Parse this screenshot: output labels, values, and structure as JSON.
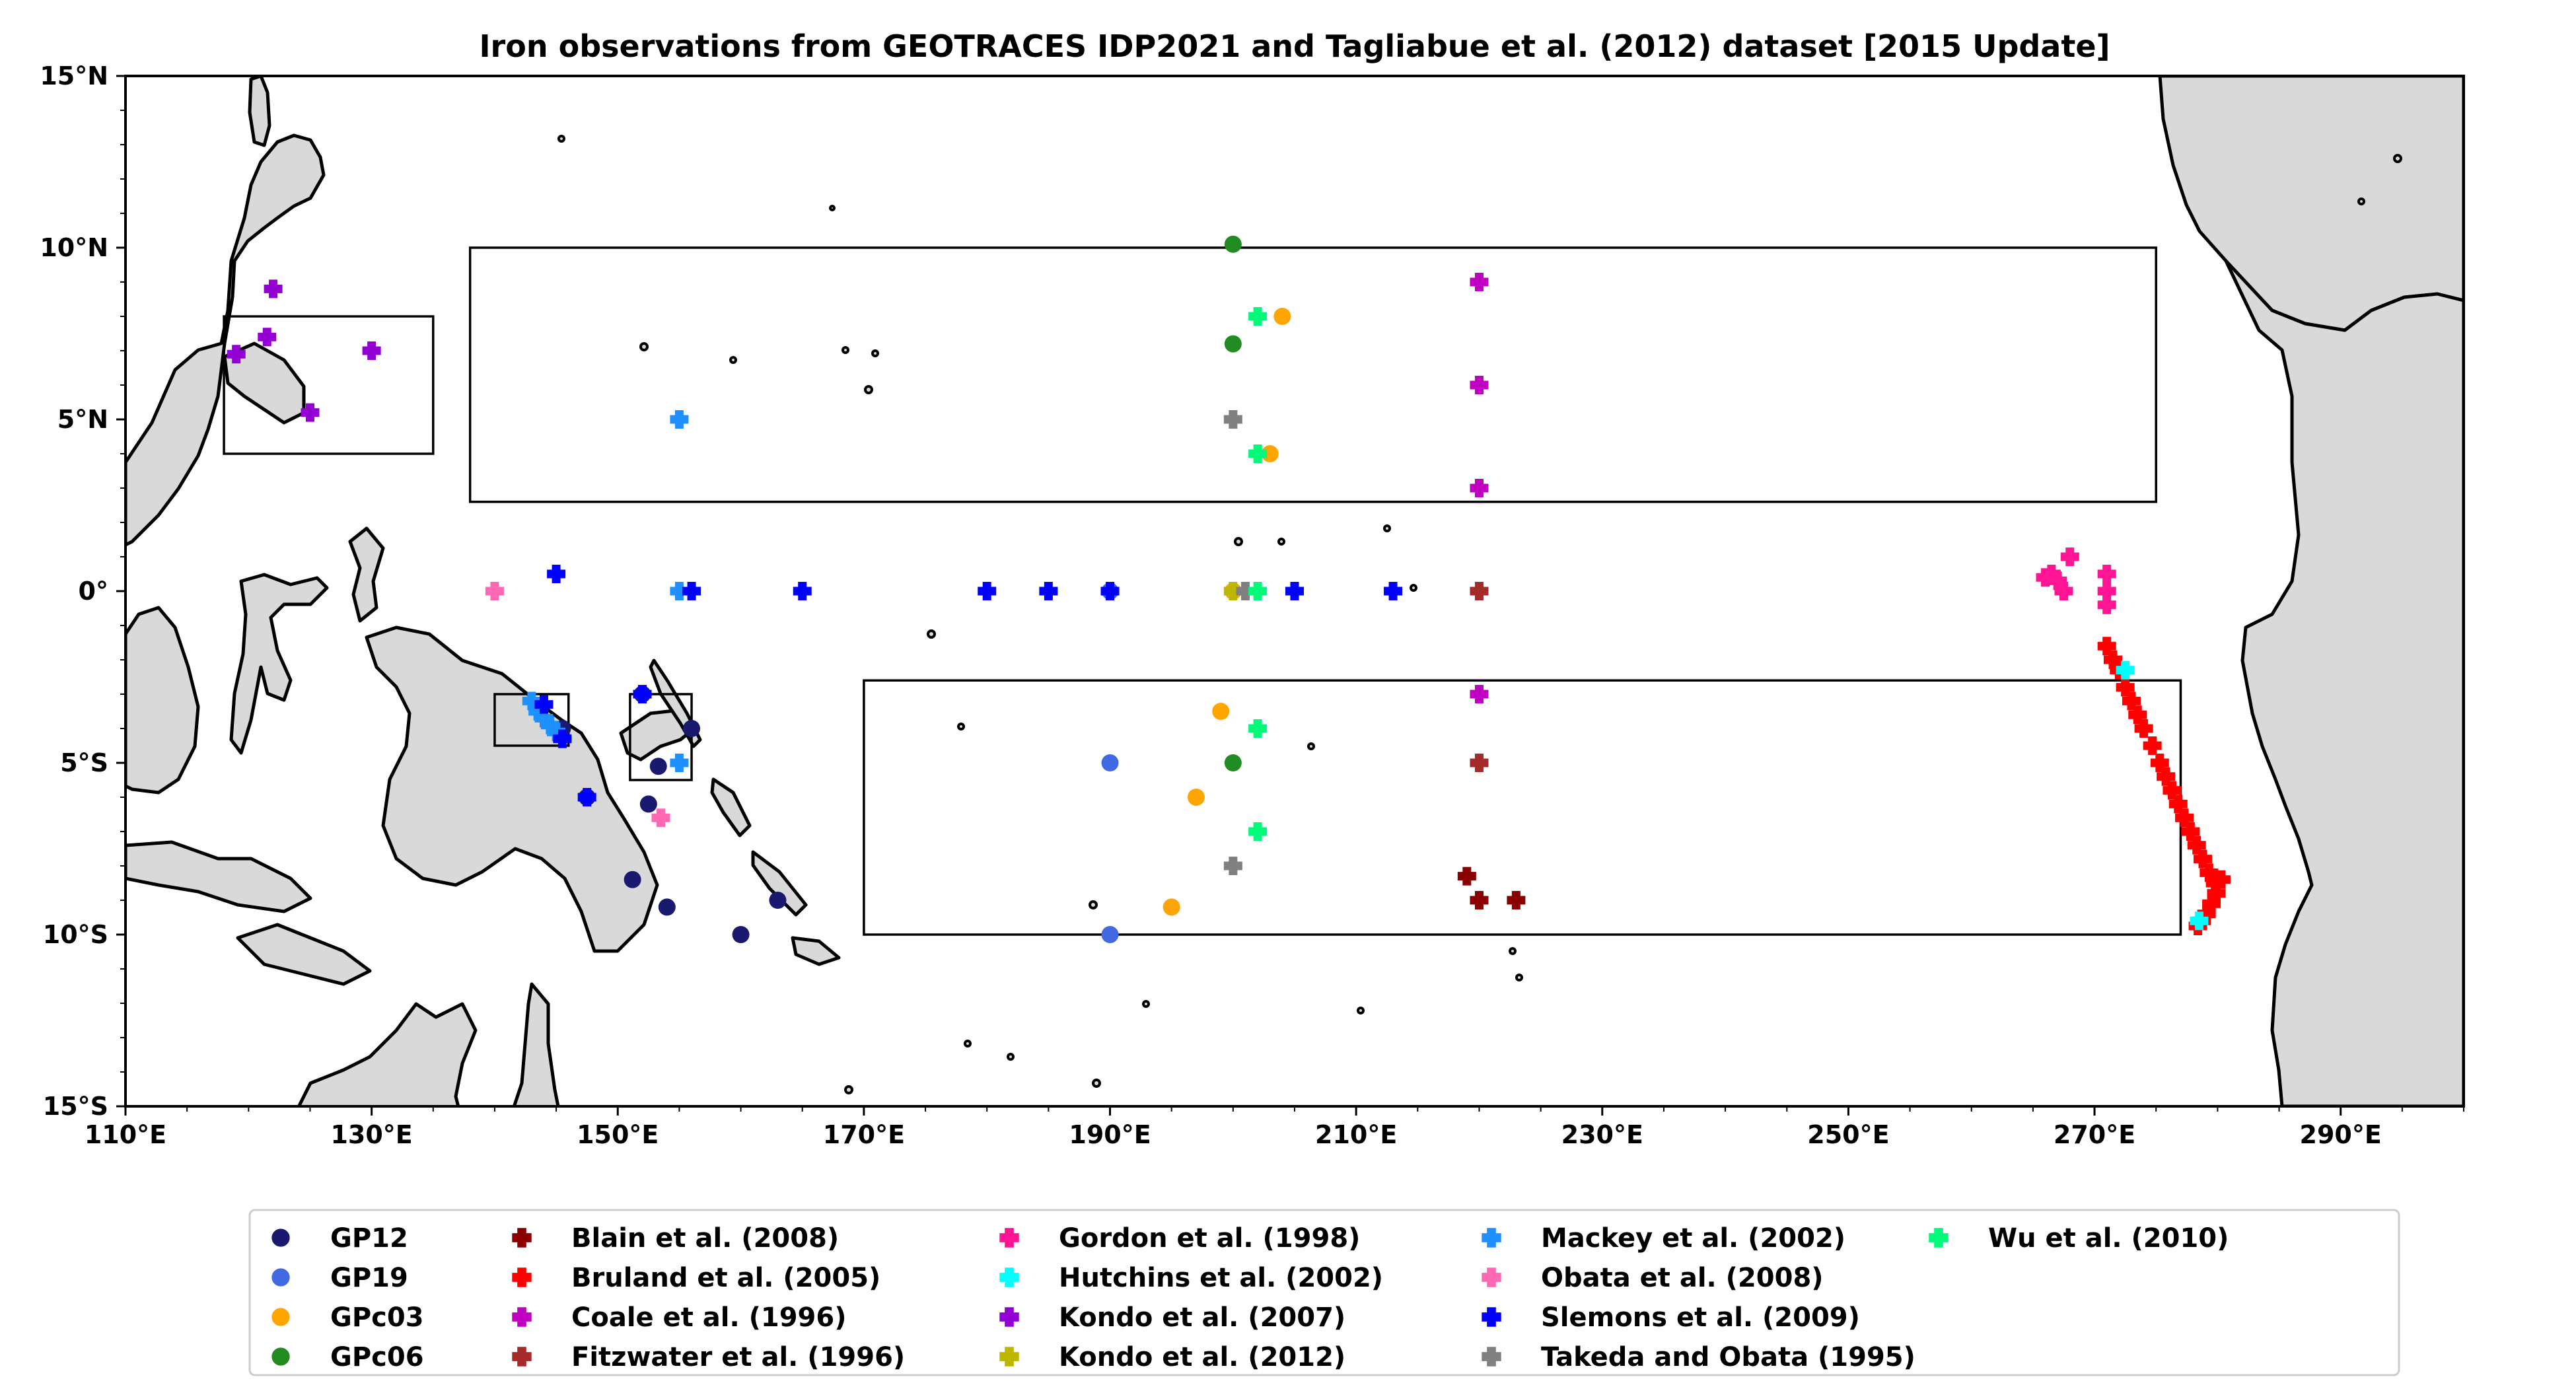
{
  "title": "Iron observations from GEOTRACES IDP2021 and Tagliabue et al. (2012) dataset [2015 Update]",
  "map": {
    "lon_range": [
      110,
      300
    ],
    "lat_range": [
      -15,
      15
    ],
    "land_color": "#d9d9d9"
  },
  "x_ticks": [
    {
      "value": 110,
      "label": "110°E"
    },
    {
      "value": 130,
      "label": "130°E"
    },
    {
      "value": 150,
      "label": "150°E"
    },
    {
      "value": 170,
      "label": "170°E"
    },
    {
      "value": 190,
      "label": "190°E"
    },
    {
      "value": 210,
      "label": "210°E"
    },
    {
      "value": 230,
      "label": "230°E"
    },
    {
      "value": 250,
      "label": "250°E"
    },
    {
      "value": 270,
      "label": "270°E"
    },
    {
      "value": 290,
      "label": "290°E"
    }
  ],
  "y_ticks": [
    {
      "value": 15,
      "label": "15°N"
    },
    {
      "value": 10,
      "label": "10°N"
    },
    {
      "value": 5,
      "label": "5°N"
    },
    {
      "value": 0,
      "label": "0°"
    },
    {
      "value": -5,
      "label": "5°S"
    },
    {
      "value": -10,
      "label": "10°S"
    },
    {
      "value": -15,
      "label": "15°S"
    }
  ],
  "region_boxes": [
    {
      "lon": [
        118,
        135
      ],
      "lat": [
        4,
        8
      ]
    },
    {
      "lon": [
        138,
        275
      ],
      "lat": [
        2.6,
        10
      ]
    },
    {
      "lon": [
        170,
        277
      ],
      "lat": [
        -10,
        -2.6
      ]
    },
    {
      "lon": [
        140,
        146
      ],
      "lat": [
        -4.5,
        -3
      ]
    },
    {
      "lon": [
        151,
        156
      ],
      "lat": [
        -5.5,
        -3
      ]
    }
  ],
  "chart_data": {
    "type": "scatter",
    "series": [
      {
        "name": "GP12",
        "marker": "circle",
        "color": "#191970",
        "points": [
          [
            145.5,
            -4
          ],
          [
            147.5,
            -6
          ],
          [
            152,
            -3
          ],
          [
            152.5,
            -6.2
          ],
          [
            153.3,
            -5.1
          ],
          [
            154,
            -9.2
          ],
          [
            151.2,
            -8.4
          ],
          [
            156,
            -4
          ],
          [
            160,
            -10
          ],
          [
            163,
            -9
          ]
        ]
      },
      {
        "name": "GP19",
        "marker": "circle",
        "color": "#4169e1",
        "points": [
          [
            190,
            -5
          ],
          [
            190,
            -10
          ],
          [
            190,
            0
          ]
        ]
      },
      {
        "name": "GPc03",
        "marker": "circle",
        "color": "#ffa500",
        "points": [
          [
            204,
            8
          ],
          [
            203,
            4
          ],
          [
            199,
            -3.5
          ],
          [
            197,
            -6
          ],
          [
            195,
            -9.2
          ],
          [
            200,
            0
          ]
        ]
      },
      {
        "name": "GPc06",
        "marker": "circle",
        "color": "#228b22",
        "points": [
          [
            200,
            10.1
          ],
          [
            200,
            7.2
          ],
          [
            200,
            -5
          ]
        ]
      },
      {
        "name": "Blain et al. (2008)",
        "marker": "plus",
        "color": "#8b0000",
        "points": [
          [
            219,
            -8.3
          ],
          [
            220,
            -9
          ],
          [
            223,
            -9
          ]
        ]
      },
      {
        "name": "Bruland et al. (2005)",
        "marker": "plus",
        "color": "#ff0000",
        "points": [
          [
            271,
            -1.6
          ],
          [
            271.5,
            -2
          ],
          [
            272,
            -2.3
          ],
          [
            272.5,
            -2.8
          ],
          [
            273,
            -3.2
          ],
          [
            273.5,
            -3.6
          ],
          [
            274,
            -4
          ],
          [
            274.7,
            -4.5
          ],
          [
            275.3,
            -5
          ],
          [
            275.8,
            -5.4
          ],
          [
            276.3,
            -5.8
          ],
          [
            276.8,
            -6.2
          ],
          [
            277.3,
            -6.6
          ],
          [
            277.8,
            -7
          ],
          [
            278.3,
            -7.4
          ],
          [
            278.8,
            -7.8
          ],
          [
            279.3,
            -8.2
          ],
          [
            279.8,
            -8.5
          ],
          [
            280.3,
            -8.4
          ],
          [
            279.9,
            -8.8
          ],
          [
            279.5,
            -9.1
          ],
          [
            279.1,
            -9.4
          ],
          [
            278.7,
            -9.6
          ],
          [
            278.4,
            -9.75
          ]
        ]
      },
      {
        "name": "Coale et al. (1996)",
        "marker": "plus",
        "color": "#c000c0",
        "points": [
          [
            220,
            9
          ],
          [
            220,
            6
          ],
          [
            220,
            3
          ],
          [
            220,
            -3
          ]
        ]
      },
      {
        "name": "Fitzwater et al. (1996)",
        "marker": "plus",
        "color": "#a52a2a",
        "points": [
          [
            220,
            0
          ],
          [
            220,
            -5
          ]
        ]
      },
      {
        "name": "Gordon et al. (1998)",
        "marker": "plus",
        "color": "#ff1493",
        "points": [
          [
            266,
            0.4
          ],
          [
            266.5,
            0.5
          ],
          [
            267,
            0.3
          ],
          [
            267.5,
            0
          ],
          [
            268,
            1
          ],
          [
            271,
            0.5
          ],
          [
            271,
            0
          ],
          [
            271,
            -0.4
          ]
        ]
      },
      {
        "name": "Hutchins et al. (2002)",
        "marker": "plus",
        "color": "#00ffff",
        "points": [
          [
            272.5,
            -2.3
          ],
          [
            278.5,
            -9.6
          ]
        ]
      },
      {
        "name": "Kondo et al. (2007)",
        "marker": "plus",
        "color": "#9400d3",
        "points": [
          [
            122,
            8.8
          ],
          [
            119,
            6.9
          ],
          [
            121.5,
            7.4
          ],
          [
            125,
            5.2
          ],
          [
            130,
            7
          ]
        ]
      },
      {
        "name": "Kondo et al. (2012)",
        "marker": "plus",
        "color": "#bdb700",
        "points": [
          [
            200,
            0
          ]
        ]
      },
      {
        "name": "Mackey et al. (2002)",
        "marker": "plus",
        "color": "#1e90ff",
        "points": [
          [
            143,
            -3.2
          ],
          [
            143.5,
            -3.5
          ],
          [
            144,
            -3.7
          ],
          [
            144.5,
            -3.9
          ],
          [
            145,
            -4.1
          ],
          [
            155,
            5
          ],
          [
            155,
            0
          ],
          [
            155,
            -5
          ]
        ]
      },
      {
        "name": "Obata et al. (2008)",
        "marker": "plus",
        "color": "#ff69b4",
        "points": [
          [
            140,
            0
          ],
          [
            153.5,
            -6.6
          ]
        ]
      },
      {
        "name": "Slemons et al. (2009)",
        "marker": "plus",
        "color": "#0000ff",
        "points": [
          [
            145,
            0.5
          ],
          [
            156,
            0
          ],
          [
            165,
            0
          ],
          [
            180,
            0
          ],
          [
            185,
            0
          ],
          [
            190,
            0
          ],
          [
            205,
            0
          ],
          [
            213,
            0
          ],
          [
            144,
            -3.3
          ],
          [
            145.5,
            -4.3
          ],
          [
            147.5,
            -6
          ],
          [
            152,
            -3
          ]
        ]
      },
      {
        "name": "Takeda and Obata (1995)",
        "marker": "plus",
        "color": "#808080",
        "points": [
          [
            200,
            5
          ],
          [
            201,
            0
          ],
          [
            200,
            -8
          ]
        ]
      },
      {
        "name": "Wu et al. (2010)",
        "marker": "plus",
        "color": "#00fa7a",
        "points": [
          [
            202,
            8
          ],
          [
            202,
            4
          ],
          [
            202,
            0
          ],
          [
            202,
            -4
          ],
          [
            202,
            -7
          ]
        ]
      }
    ]
  }
}
